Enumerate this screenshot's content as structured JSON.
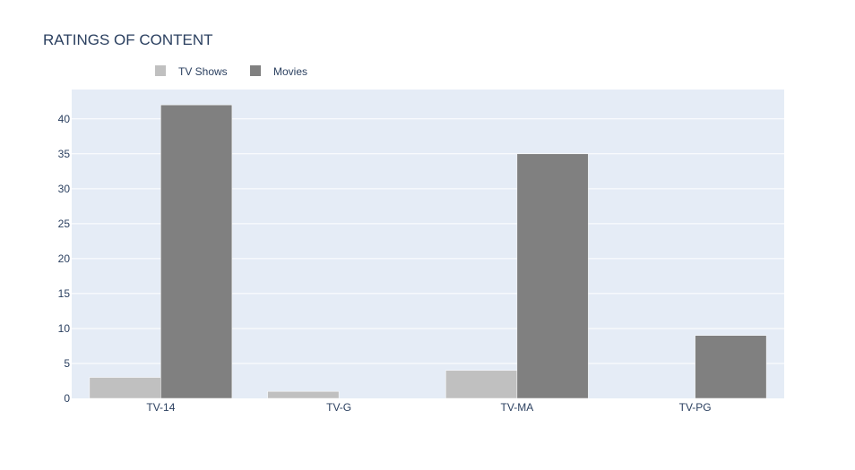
{
  "chart_data": {
    "type": "bar",
    "title": "RATINGS OF CONTENT",
    "categories": [
      "TV-14",
      "TV-G",
      "TV-MA",
      "TV-PG"
    ],
    "series": [
      {
        "name": "TV Shows",
        "values": [
          3,
          1,
          4,
          null
        ],
        "color": "#c0c0c0"
      },
      {
        "name": "Movies",
        "values": [
          42,
          null,
          35,
          9
        ],
        "color": "#808080"
      }
    ],
    "xlabel": "",
    "ylabel": "",
    "ylim": [
      0,
      44.2
    ],
    "yticks": [
      0,
      5,
      10,
      15,
      20,
      25,
      30,
      35,
      40
    ],
    "grid": true,
    "legend": "top-left",
    "plot_background": "#e5ecf6"
  }
}
